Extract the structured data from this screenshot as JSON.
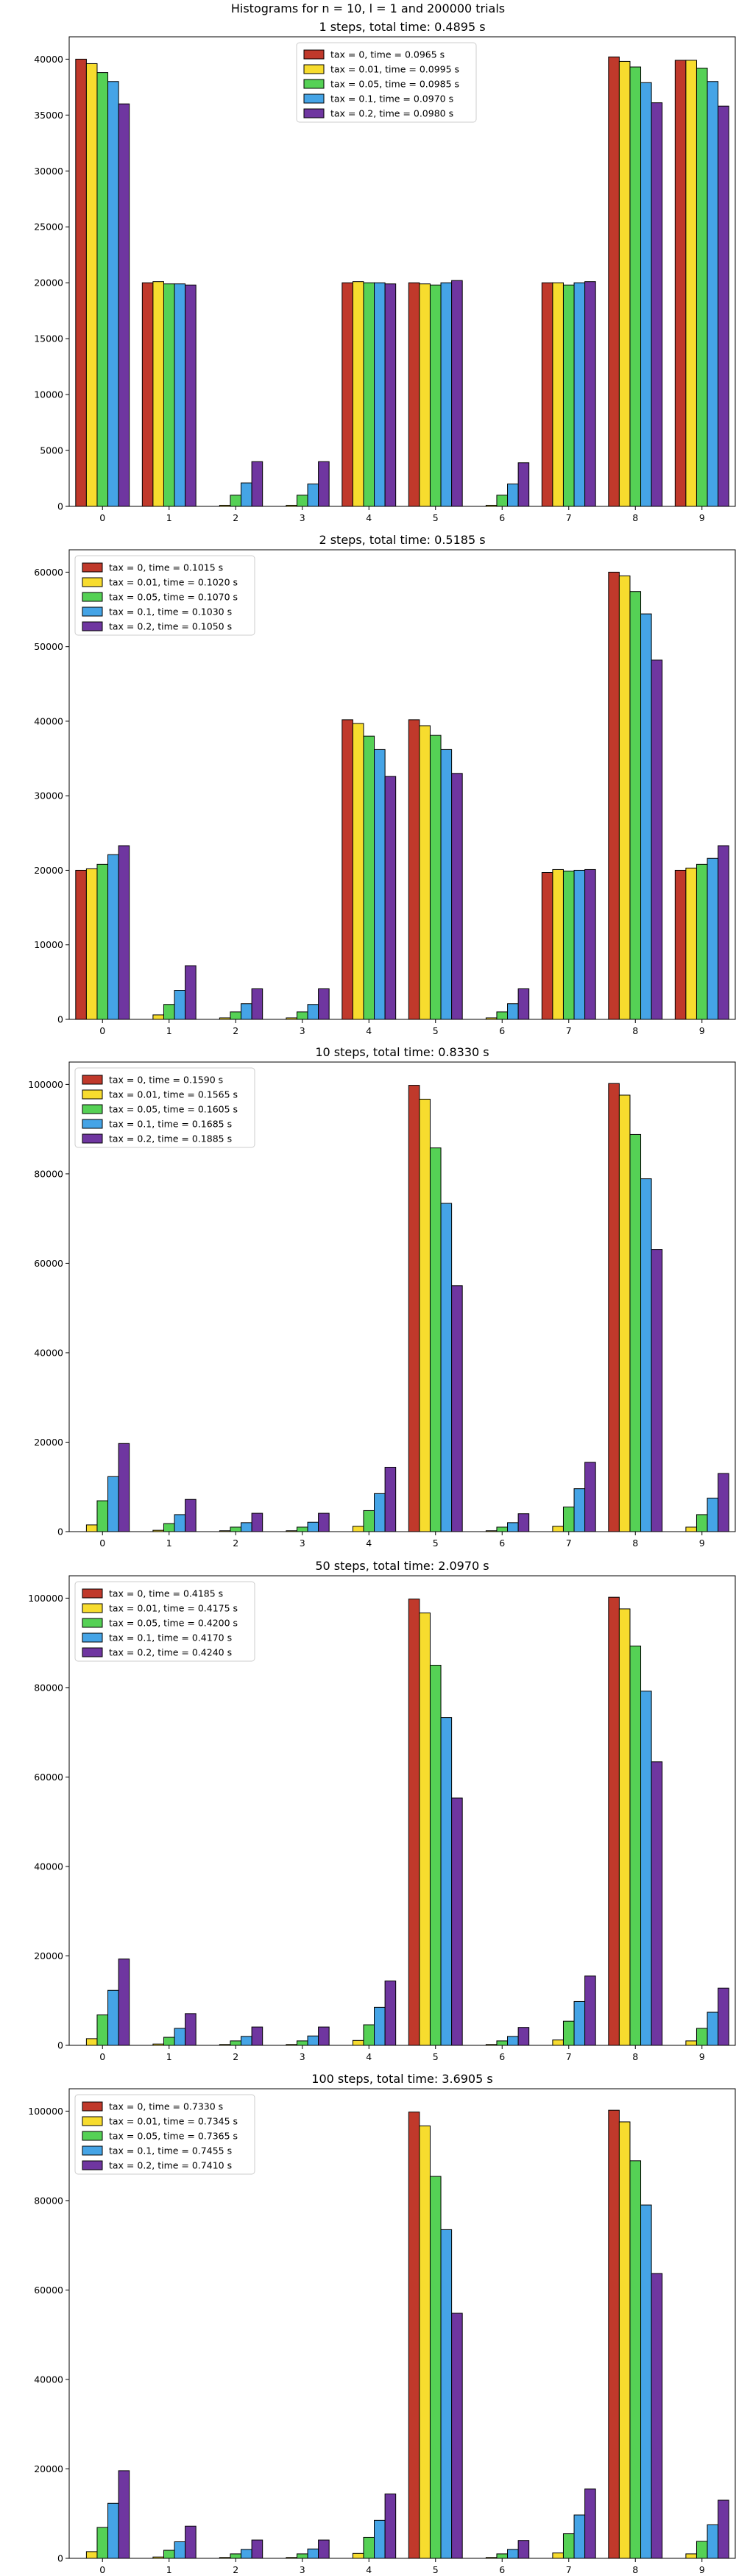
{
  "figure": {
    "suptitle": "Histograms for n = 10, l = 1 and 200000 trials"
  },
  "colors": [
    "#c0392b",
    "#f7dc2e",
    "#55d155",
    "#45a4e6",
    "#6f36a0"
  ],
  "chart_data": [
    {
      "type": "bar",
      "title": "1 steps, total time: 0.4895 s",
      "legend_position": "top-center",
      "categories": [
        "0",
        "1",
        "2",
        "3",
        "4",
        "5",
        "6",
        "7",
        "8",
        "9"
      ],
      "yticks": [
        0,
        5000,
        10000,
        15000,
        20000,
        25000,
        30000,
        35000,
        40000
      ],
      "ylim": [
        0,
        42000
      ],
      "series": [
        {
          "name": "tax = 0, time = 0.0965 s",
          "values": [
            40000,
            20000,
            0,
            0,
            20000,
            20000,
            0,
            20000,
            40200,
            39900
          ]
        },
        {
          "name": "tax = 0.01, time = 0.0995 s",
          "values": [
            39600,
            20100,
            100,
            100,
            20100,
            19900,
            100,
            20000,
            39800,
            39900
          ]
        },
        {
          "name": "tax = 0.05, time = 0.0985 s",
          "values": [
            38800,
            19900,
            1000,
            1000,
            20000,
            19800,
            1000,
            19800,
            39300,
            39200
          ]
        },
        {
          "name": "tax = 0.1, time = 0.0970 s",
          "values": [
            38000,
            19900,
            2100,
            2000,
            20000,
            20000,
            2000,
            20000,
            37900,
            38000
          ]
        },
        {
          "name": "tax = 0.2, time = 0.0980 s",
          "values": [
            36000,
            19800,
            4000,
            4000,
            19900,
            20200,
            3900,
            20100,
            36100,
            35800
          ]
        }
      ]
    },
    {
      "type": "bar",
      "title": "2 steps, total time: 0.5185 s",
      "legend_position": "top-left",
      "categories": [
        "0",
        "1",
        "2",
        "3",
        "4",
        "5",
        "6",
        "7",
        "8",
        "9"
      ],
      "yticks": [
        0,
        10000,
        20000,
        30000,
        40000,
        50000,
        60000
      ],
      "ylim": [
        0,
        63000
      ],
      "series": [
        {
          "name": "tax = 0, time = 0.1015 s",
          "values": [
            20000,
            0,
            0,
            0,
            40200,
            40200,
            0,
            19700,
            60000,
            20000
          ]
        },
        {
          "name": "tax = 0.01, time = 0.1020 s",
          "values": [
            20200,
            600,
            200,
            200,
            39700,
            39400,
            200,
            20100,
            59500,
            20300
          ]
        },
        {
          "name": "tax = 0.05, time = 0.1070 s",
          "values": [
            20800,
            2000,
            1000,
            1000,
            38000,
            38100,
            1000,
            19900,
            57400,
            20800
          ]
        },
        {
          "name": "tax = 0.1, time = 0.1030 s",
          "values": [
            22100,
            3900,
            2100,
            2000,
            36200,
            36200,
            2100,
            20000,
            54400,
            21600
          ]
        },
        {
          "name": "tax = 0.2, time = 0.1050 s",
          "values": [
            23300,
            7200,
            4100,
            4100,
            32600,
            33000,
            4100,
            20100,
            48200,
            23300
          ]
        }
      ]
    },
    {
      "type": "bar",
      "title": "10 steps, total time: 0.8330 s",
      "legend_position": "top-left",
      "categories": [
        "0",
        "1",
        "2",
        "3",
        "4",
        "5",
        "6",
        "7",
        "8",
        "9"
      ],
      "yticks": [
        0,
        20000,
        40000,
        60000,
        80000,
        100000
      ],
      "ylim": [
        0,
        105000
      ],
      "series": [
        {
          "name": "tax = 0, time = 0.1590 s",
          "values": [
            0,
            0,
            0,
            0,
            0,
            99800,
            0,
            0,
            100200,
            0
          ]
        },
        {
          "name": "tax = 0.01, time = 0.1565 s",
          "values": [
            1500,
            300,
            200,
            200,
            1200,
            96700,
            200,
            1200,
            97600,
            1000
          ]
        },
        {
          "name": "tax = 0.05, time = 0.1605 s",
          "values": [
            6900,
            1800,
            1000,
            1000,
            4700,
            85800,
            1000,
            5500,
            88800,
            3800
          ]
        },
        {
          "name": "tax = 0.1, time = 0.1685 s",
          "values": [
            12300,
            3800,
            2000,
            2100,
            8500,
            73400,
            2000,
            9600,
            78900,
            7500
          ]
        },
        {
          "name": "tax = 0.2, time = 0.1885 s",
          "values": [
            19700,
            7200,
            4100,
            4100,
            14400,
            55000,
            4000,
            15500,
            63100,
            13000
          ]
        }
      ]
    },
    {
      "type": "bar",
      "title": "50 steps, total time: 2.0970 s",
      "legend_position": "top-left",
      "categories": [
        "0",
        "1",
        "2",
        "3",
        "4",
        "5",
        "6",
        "7",
        "8",
        "9"
      ],
      "yticks": [
        0,
        20000,
        40000,
        60000,
        80000,
        100000
      ],
      "ylim": [
        0,
        105000
      ],
      "series": [
        {
          "name": "tax = 0, time = 0.4185 s",
          "values": [
            0,
            0,
            0,
            0,
            0,
            99800,
            0,
            0,
            100200,
            0
          ]
        },
        {
          "name": "tax = 0.01, time = 0.4175 s",
          "values": [
            1500,
            300,
            200,
            200,
            1100,
            96700,
            200,
            1200,
            97600,
            1000
          ]
        },
        {
          "name": "tax = 0.05, time = 0.4200 s",
          "values": [
            6800,
            1800,
            1000,
            1000,
            4600,
            85000,
            1000,
            5400,
            89300,
            3800
          ]
        },
        {
          "name": "tax = 0.1, time = 0.4170 s",
          "values": [
            12300,
            3800,
            2000,
            2100,
            8500,
            73300,
            2000,
            9800,
            79200,
            7400
          ]
        },
        {
          "name": "tax = 0.2, time = 0.4240 s",
          "values": [
            19300,
            7100,
            4100,
            4100,
            14400,
            55300,
            4000,
            15500,
            63400,
            12800
          ]
        }
      ]
    },
    {
      "type": "bar",
      "title": "100 steps, total time: 3.6905 s",
      "legend_position": "top-left",
      "categories": [
        "0",
        "1",
        "2",
        "3",
        "4",
        "5",
        "6",
        "7",
        "8",
        "9"
      ],
      "yticks": [
        0,
        20000,
        40000,
        60000,
        80000,
        100000
      ],
      "ylim": [
        0,
        105000
      ],
      "series": [
        {
          "name": "tax = 0, time = 0.7330 s",
          "values": [
            0,
            0,
            0,
            0,
            0,
            99800,
            0,
            0,
            100200,
            0
          ]
        },
        {
          "name": "tax = 0.01, time = 0.7345 s",
          "values": [
            1500,
            300,
            200,
            200,
            1100,
            96700,
            200,
            1200,
            97600,
            1000
          ]
        },
        {
          "name": "tax = 0.05, time = 0.7365 s",
          "values": [
            6900,
            1800,
            1000,
            1000,
            4700,
            85400,
            1000,
            5500,
            88900,
            3800
          ]
        },
        {
          "name": "tax = 0.1, time = 0.7455 s",
          "values": [
            12300,
            3700,
            2000,
            2100,
            8500,
            73500,
            2000,
            9700,
            79000,
            7500
          ]
        },
        {
          "name": "tax = 0.2, time = 0.7410 s",
          "values": [
            19600,
            7200,
            4100,
            4100,
            14400,
            54800,
            4000,
            15500,
            63700,
            13000
          ]
        }
      ]
    }
  ]
}
